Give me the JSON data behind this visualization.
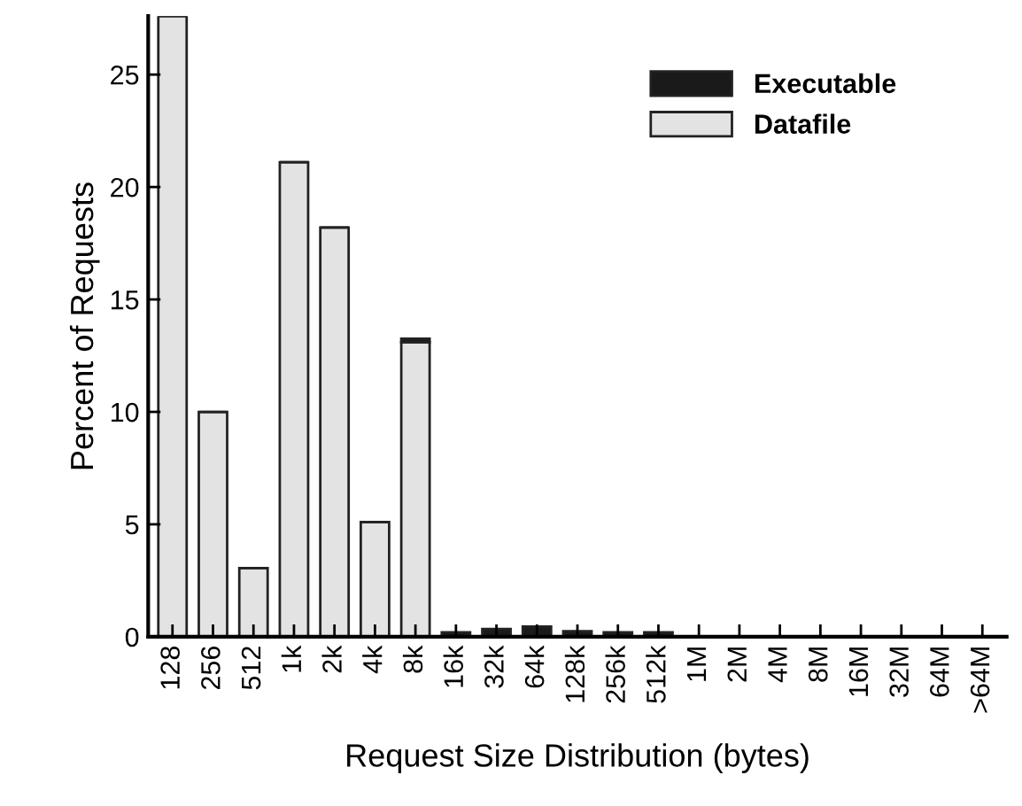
{
  "chart_data": {
    "type": "bar",
    "stacked": true,
    "xlabel": "Request Size Distribution (bytes)",
    "ylabel": "Percent of Requests",
    "categories": [
      "128",
      "256",
      "512",
      "1k",
      "2k",
      "4k",
      "8k",
      "16k",
      "32k",
      "64k",
      "128k",
      "256k",
      "512k",
      "1M",
      "2M",
      "4M",
      "8M",
      "16M",
      "32M",
      "64M",
      ">64M"
    ],
    "series": [
      {
        "name": "Datafile",
        "color": "#e3e3e3",
        "values": [
          27.6,
          10.0,
          3.05,
          21.1,
          18.2,
          5.1,
          13.1,
          0,
          0,
          0,
          0,
          0,
          0,
          0,
          0,
          0,
          0,
          0,
          0,
          0,
          0
        ]
      },
      {
        "name": "Executable",
        "color": "#1a1a1a",
        "values": [
          0,
          0,
          0,
          0,
          0,
          0,
          0.15,
          0.2,
          0.35,
          0.45,
          0.25,
          0.2,
          0.2,
          0,
          0,
          0,
          0,
          0,
          0,
          0,
          0
        ]
      }
    ],
    "ylim": [
      0,
      27.6
    ],
    "yticks": [
      0,
      5,
      10,
      15,
      20,
      25
    ],
    "grid": false,
    "legend": "top right"
  }
}
